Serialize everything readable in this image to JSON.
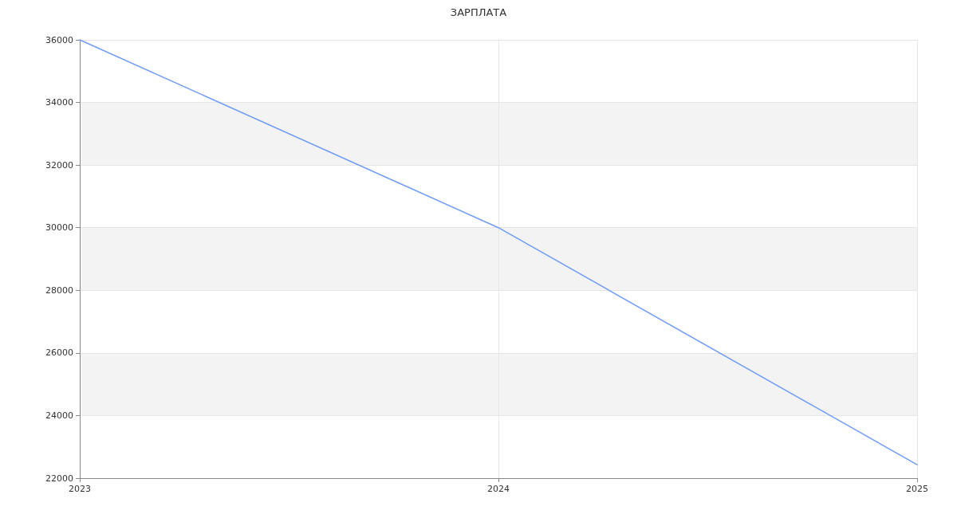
{
  "chart_data": {
    "type": "line",
    "title": "ЗАРПЛАТА",
    "x": [
      2023,
      2024,
      2025
    ],
    "series": [
      {
        "color": "#6f9cf5",
        "values": [
          36000,
          30000,
          22430
        ]
      }
    ],
    "xlim": [
      2023,
      2025
    ],
    "xticks": [
      2023,
      2024,
      2025
    ],
    "ylim": [
      22000,
      36000
    ],
    "yticks": [
      22000,
      24000,
      26000,
      28000,
      30000,
      32000,
      34000,
      36000
    ],
    "grid": true,
    "marker": "none",
    "line_style": "solid"
  }
}
